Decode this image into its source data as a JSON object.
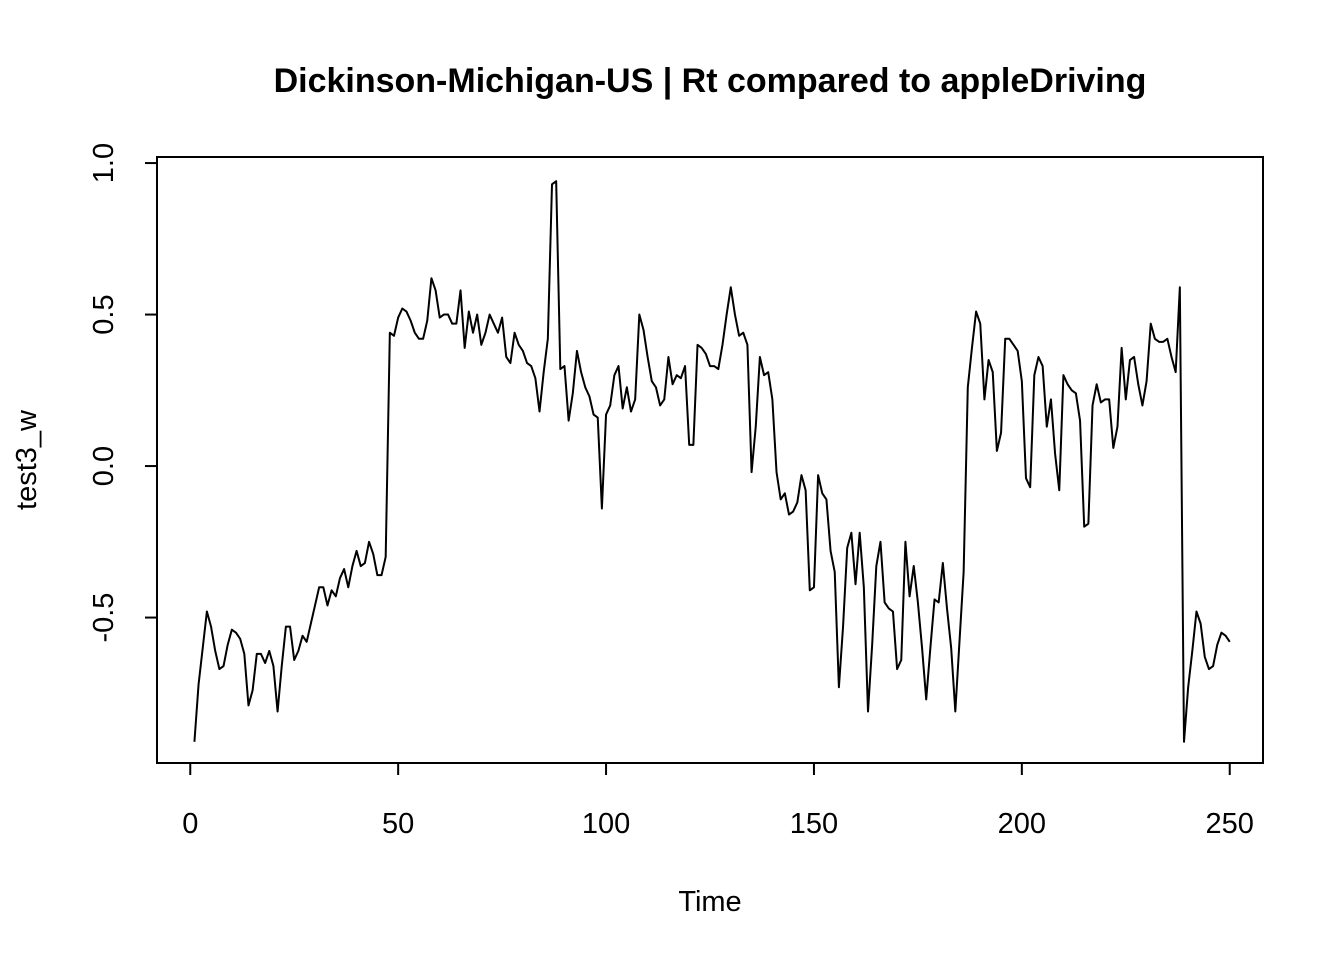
{
  "chart_data": {
    "type": "line",
    "title": "Dickinson-Michigan-US | Rt compared to appleDriving",
    "xlabel": "Time",
    "ylabel": "test3_w",
    "xlim": [
      -8,
      258
    ],
    "ylim": [
      -0.98,
      1.02
    ],
    "xticks": [
      0,
      50,
      100,
      150,
      200,
      250
    ],
    "yticks": [
      -0.5,
      0.0,
      0.5,
      1.0
    ],
    "xtick_labels": [
      "0",
      "50",
      "100",
      "150",
      "200",
      "250"
    ],
    "ytick_labels": [
      "-0.5",
      "0.0",
      "0.5",
      "1.0"
    ],
    "grid": false,
    "legend": "none",
    "line_color": "#000000",
    "x_start": 1,
    "series": [
      {
        "values": [
          -0.91,
          -0.72,
          -0.6,
          -0.48,
          -0.53,
          -0.61,
          -0.67,
          -0.66,
          -0.59,
          -0.54,
          -0.55,
          -0.57,
          -0.62,
          -0.79,
          -0.74,
          -0.62,
          -0.62,
          -0.65,
          -0.61,
          -0.66,
          -0.81,
          -0.66,
          -0.53,
          -0.53,
          -0.64,
          -0.61,
          -0.56,
          -0.58,
          -0.52,
          -0.46,
          -0.4,
          -0.4,
          -0.46,
          -0.41,
          -0.43,
          -0.37,
          -0.34,
          -0.4,
          -0.33,
          -0.28,
          -0.33,
          -0.32,
          -0.25,
          -0.29,
          -0.36,
          -0.36,
          -0.3,
          0.44,
          0.43,
          0.49,
          0.52,
          0.51,
          0.48,
          0.44,
          0.42,
          0.42,
          0.48,
          0.62,
          0.58,
          0.49,
          0.5,
          0.5,
          0.47,
          0.47,
          0.58,
          0.39,
          0.51,
          0.44,
          0.5,
          0.4,
          0.44,
          0.5,
          0.47,
          0.44,
          0.49,
          0.36,
          0.34,
          0.44,
          0.4,
          0.38,
          0.34,
          0.33,
          0.29,
          0.18,
          0.31,
          0.42,
          0.93,
          0.94,
          0.32,
          0.33,
          0.15,
          0.24,
          0.38,
          0.31,
          0.26,
          0.23,
          0.17,
          0.16,
          -0.14,
          0.17,
          0.2,
          0.3,
          0.33,
          0.19,
          0.26,
          0.18,
          0.22,
          0.5,
          0.45,
          0.36,
          0.28,
          0.26,
          0.2,
          0.22,
          0.36,
          0.27,
          0.3,
          0.29,
          0.33,
          0.07,
          0.07,
          0.4,
          0.39,
          0.37,
          0.33,
          0.33,
          0.32,
          0.4,
          0.5,
          0.59,
          0.5,
          0.43,
          0.44,
          0.4,
          -0.02,
          0.13,
          0.36,
          0.3,
          0.31,
          0.22,
          -0.02,
          -0.11,
          -0.09,
          -0.16,
          -0.15,
          -0.12,
          -0.03,
          -0.08,
          -0.41,
          -0.4,
          -0.03,
          -0.09,
          -0.11,
          -0.28,
          -0.35,
          -0.73,
          -0.53,
          -0.27,
          -0.22,
          -0.39,
          -0.22,
          -0.4,
          -0.81,
          -0.59,
          -0.33,
          -0.25,
          -0.45,
          -0.47,
          -0.48,
          -0.67,
          -0.64,
          -0.25,
          -0.43,
          -0.33,
          -0.45,
          -0.6,
          -0.77,
          -0.6,
          -0.44,
          -0.45,
          -0.32,
          -0.47,
          -0.6,
          -0.81,
          -0.58,
          -0.35,
          0.26,
          0.39,
          0.51,
          0.47,
          0.22,
          0.35,
          0.31,
          0.05,
          0.11,
          0.42,
          0.42,
          0.4,
          0.38,
          0.28,
          -0.04,
          -0.07,
          0.3,
          0.36,
          0.33,
          0.13,
          0.22,
          0.04,
          -0.08,
          0.3,
          0.27,
          0.25,
          0.24,
          0.15,
          -0.2,
          -0.19,
          0.2,
          0.27,
          0.21,
          0.22,
          0.22,
          0.06,
          0.13,
          0.39,
          0.22,
          0.35,
          0.36,
          0.27,
          0.2,
          0.28,
          0.47,
          0.42,
          0.41,
          0.41,
          0.42,
          0.36,
          0.31,
          0.59,
          -0.91,
          -0.73,
          -0.61,
          -0.48,
          -0.52,
          -0.63,
          -0.67,
          -0.66,
          -0.59,
          -0.55,
          -0.56,
          -0.58
        ]
      }
    ]
  }
}
